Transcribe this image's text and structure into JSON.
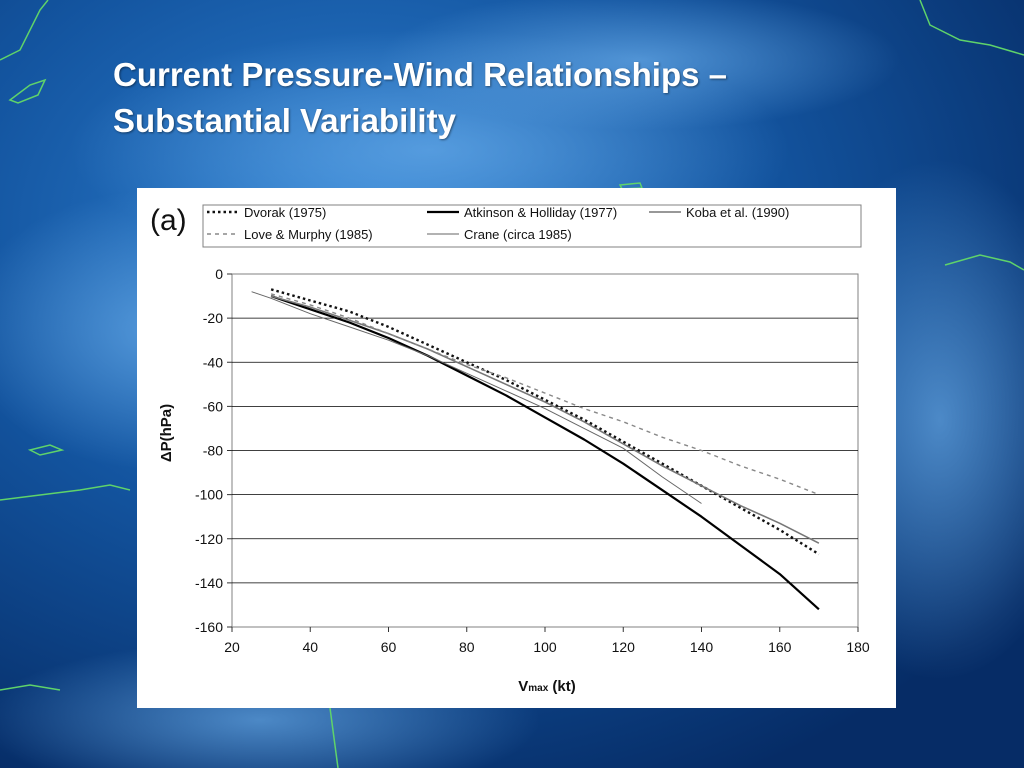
{
  "slide": {
    "title_line1": "Current Pressure-Wind Relationships –",
    "title_line2": "Substantial Variability"
  },
  "colors": {
    "background": "#0a3f86",
    "title": "#ffffff",
    "coastline": "#5fd36a"
  },
  "chart_data": {
    "type": "line",
    "panel_label": "(a)",
    "xlabel_main": "V",
    "xlabel_sub": "max",
    "xlabel_unit": " (kt)",
    "ylabel": "ΔP(hPa)",
    "xlim": [
      20,
      180
    ],
    "ylim": [
      -160,
      0
    ],
    "xticks": [
      20,
      40,
      60,
      80,
      100,
      120,
      140,
      160,
      180
    ],
    "yticks": [
      0,
      -20,
      -40,
      -60,
      -80,
      -100,
      -120,
      -140,
      -160
    ],
    "grid": "horizontal",
    "legend_position": "top",
    "series": [
      {
        "name": "Dvorak (1975)",
        "style": "dotted-thick",
        "color": "#111111",
        "x": [
          30,
          40,
          50,
          60,
          70,
          80,
          90,
          100,
          110,
          120,
          130,
          140,
          150,
          160,
          170
        ],
        "y": [
          -7,
          -12,
          -17,
          -24,
          -32,
          -40,
          -48,
          -57,
          -66,
          -76,
          -86,
          -96,
          -106,
          -116,
          -127
        ]
      },
      {
        "name": "Atkinson & Holliday (1977)",
        "style": "solid-thick",
        "color": "#000000",
        "x": [
          30,
          40,
          50,
          60,
          70,
          80,
          90,
          100,
          110,
          120,
          130,
          140,
          150,
          160,
          170
        ],
        "y": [
          -10,
          -16,
          -22,
          -29,
          -37,
          -46,
          -55,
          -65,
          -75,
          -86,
          -98,
          -110,
          -123,
          -136,
          -152
        ]
      },
      {
        "name": "Koba et al. (1990)",
        "style": "solid-medium",
        "color": "#777777",
        "x": [
          30,
          40,
          50,
          60,
          70,
          80,
          90,
          100,
          110,
          120,
          130,
          140,
          150,
          160,
          170
        ],
        "y": [
          -10,
          -15,
          -21,
          -27,
          -34,
          -42,
          -50,
          -58,
          -67,
          -77,
          -87,
          -96,
          -105,
          -113,
          -122
        ]
      },
      {
        "name": "Love & Murphy (1985)",
        "style": "dashed",
        "color": "#888888",
        "x": [
          30,
          40,
          50,
          60,
          70,
          80,
          90,
          100,
          110,
          120,
          130,
          140,
          150,
          160,
          170
        ],
        "y": [
          -9,
          -14,
          -20,
          -27,
          -34,
          -41,
          -47,
          -54,
          -61,
          -67,
          -74,
          -80,
          -87,
          -93,
          -100
        ]
      },
      {
        "name": "Crane (circa 1985)",
        "style": "solid-thin",
        "color": "#666666",
        "x": [
          25,
          30,
          40,
          50,
          60,
          70,
          80,
          90,
          100,
          110,
          120,
          130,
          140
        ],
        "y": [
          -8,
          -11,
          -18,
          -24,
          -30,
          -37,
          -45,
          -53,
          -61,
          -70,
          -79,
          -92,
          -104
        ]
      }
    ]
  }
}
